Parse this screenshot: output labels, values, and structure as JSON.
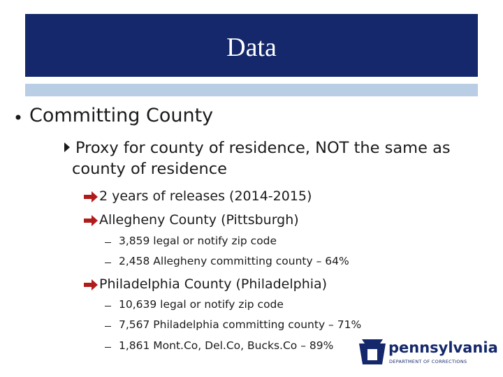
{
  "header": {
    "title": "Data"
  },
  "bullets": [
    {
      "text": "Committing County",
      "children": [
        {
          "text": "Proxy for county of residence, NOT the same as county of residence",
          "children": [
            {
              "text": "2 years of releases (2014-2015)"
            },
            {
              "text": "Allegheny County (Pittsburgh)",
              "children": [
                {
                  "text": "3,859 legal or notify zip code"
                },
                {
                  "text": "2,458 Allegheny committing county – 64%"
                }
              ]
            },
            {
              "text": "Philadelphia County (Philadelphia)",
              "children": [
                {
                  "text": "10,639 legal or notify zip code"
                },
                {
                  "text": "7,567 Philadelphia committing county – 71%"
                },
                {
                  "text": "1,861 Mont.Co, Del.Co, Bucks.Co – 89%"
                }
              ]
            }
          ]
        }
      ]
    }
  ],
  "logo": {
    "name": "pennsylvania",
    "subtitle": "DEPARTMENT OF CORRECTIONS"
  }
}
